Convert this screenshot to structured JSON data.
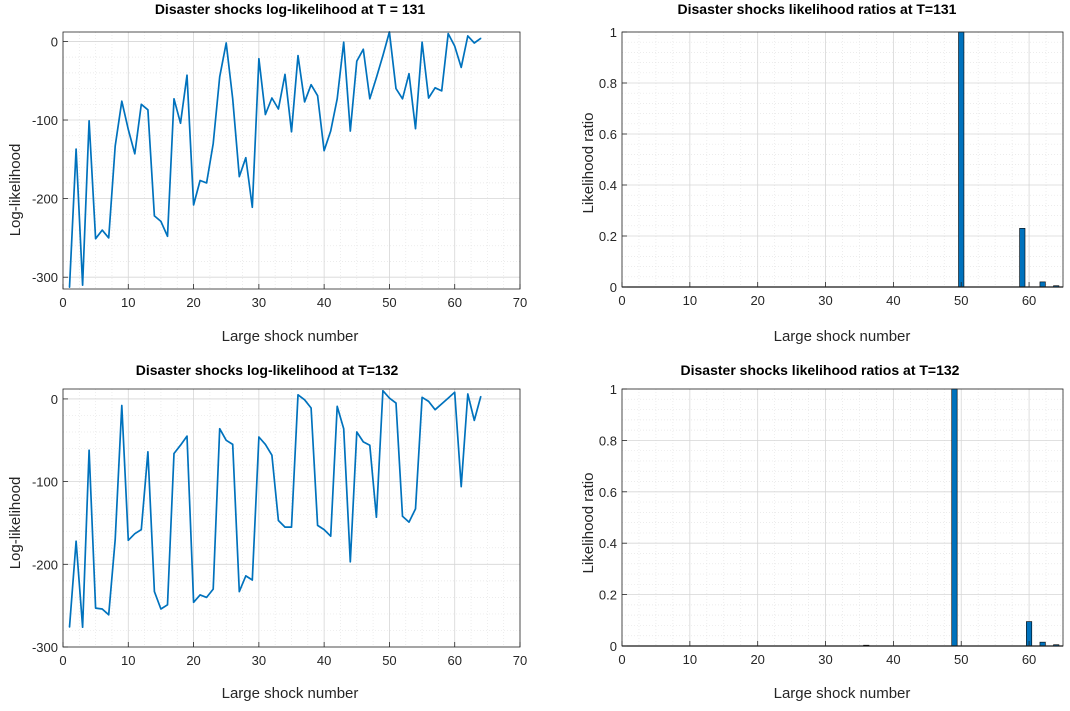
{
  "chart_data": [
    {
      "type": "line",
      "title": "Disaster shocks log-likelihood at T = 131",
      "xlabel": "Large shock number",
      "ylabel": "Log-likelihood",
      "xlim": [
        0,
        70
      ],
      "ylim": [
        -315,
        12
      ],
      "xticks": [
        0,
        10,
        20,
        30,
        40,
        50,
        60,
        70
      ],
      "yticks": [
        -300,
        -200,
        -100,
        0
      ],
      "grid": true,
      "color": "#0072BD",
      "series": [
        {
          "x": [
            1,
            2,
            3,
            4,
            5,
            6,
            7,
            8,
            9,
            10,
            11,
            12,
            13,
            14,
            15,
            16,
            17,
            18,
            19,
            20,
            21,
            22,
            23,
            24,
            25,
            26,
            27,
            28,
            29,
            30,
            31,
            32,
            33,
            34,
            35,
            36,
            37,
            38,
            39,
            40,
            41,
            42,
            43,
            44,
            45,
            46,
            47,
            48,
            49,
            50,
            51,
            52,
            53,
            54,
            55,
            56,
            57,
            58,
            59,
            60,
            61,
            62,
            63,
            64
          ],
          "y": [
            -313,
            -137,
            -310,
            -101,
            -251,
            -240,
            -250,
            -133,
            -76,
            -112,
            -143,
            -80,
            -87,
            -222,
            -229,
            -248,
            -73,
            -104,
            -43,
            -208,
            -177,
            -180,
            -130,
            -45,
            -2,
            -73,
            -172,
            -148,
            -211,
            -22,
            -93,
            -72,
            -86,
            -42,
            -115,
            -18,
            -77,
            -55,
            -69,
            -139,
            -114,
            -73,
            -1,
            -114,
            -25,
            -10,
            -73,
            -46,
            -18,
            12,
            -60,
            -73,
            -41,
            -111,
            -1,
            -72,
            -59,
            -63,
            10,
            -6,
            -33,
            7,
            -2,
            4
          ]
        }
      ]
    },
    {
      "type": "bar",
      "title": "Disaster shocks likelihood ratios at T=131",
      "xlabel": "Large shock number",
      "ylabel": "Likelihood ratio",
      "xlim": [
        0,
        65
      ],
      "ylim": [
        0,
        1
      ],
      "xticks": [
        0,
        10,
        20,
        30,
        40,
        50,
        60
      ],
      "yticks": [
        0,
        0.2,
        0.4,
        0.6,
        0.8,
        1
      ],
      "ytick_labels": [
        "0",
        "0.2",
        "0.4",
        "0.6",
        "0.8",
        "1"
      ],
      "grid": true,
      "color": "#0072BD",
      "series": [
        {
          "x": [
            50,
            59,
            62,
            64
          ],
          "y": [
            1,
            0.23,
            0.02,
            0.005
          ]
        }
      ]
    },
    {
      "type": "line",
      "title": "Disaster shocks log-likelihood at T=132",
      "xlabel": "Large shock number",
      "ylabel": "Log-likelihood",
      "xlim": [
        0,
        70
      ],
      "ylim": [
        -300,
        12
      ],
      "xticks": [
        0,
        10,
        20,
        30,
        40,
        50,
        60,
        70
      ],
      "yticks": [
        -300,
        -200,
        -100,
        0
      ],
      "grid": true,
      "color": "#0072BD",
      "series": [
        {
          "x": [
            1,
            2,
            3,
            4,
            5,
            6,
            7,
            8,
            9,
            10,
            11,
            12,
            13,
            14,
            15,
            16,
            17,
            18,
            19,
            20,
            21,
            22,
            23,
            24,
            25,
            26,
            27,
            28,
            29,
            30,
            31,
            32,
            33,
            34,
            35,
            36,
            37,
            38,
            39,
            40,
            41,
            42,
            43,
            44,
            45,
            46,
            47,
            48,
            49,
            50,
            51,
            52,
            53,
            54,
            55,
            56,
            57,
            58,
            59,
            60,
            61,
            62,
            63,
            64
          ],
          "y": [
            -276,
            -172,
            -276,
            -62,
            -253,
            -254,
            -261,
            -170,
            -8,
            -171,
            -163,
            -158,
            -64,
            -233,
            -254,
            -249,
            -66,
            -56,
            -45,
            -246,
            -237,
            -240,
            -230,
            -36,
            -50,
            -55,
            -233,
            -214,
            -219,
            -46,
            -55,
            -68,
            -147,
            -155,
            -155,
            5,
            -1,
            -11,
            -153,
            -158,
            -166,
            -9,
            -36,
            -197,
            -40,
            -52,
            -56,
            -143,
            10,
            1,
            -5,
            -142,
            -149,
            -133,
            2,
            -3,
            -13,
            -6,
            1,
            8,
            -106,
            6,
            -26,
            3
          ]
        }
      ]
    },
    {
      "type": "bar",
      "title": "Disaster shocks likelihood ratios at T=132",
      "xlabel": "Large shock number",
      "ylabel": "Likelihood ratio",
      "xlim": [
        0,
        65
      ],
      "ylim": [
        0,
        1
      ],
      "xticks": [
        0,
        10,
        20,
        30,
        40,
        50,
        60
      ],
      "yticks": [
        0,
        0.2,
        0.4,
        0.6,
        0.8,
        1
      ],
      "ytick_labels": [
        "0",
        "0.2",
        "0.4",
        "0.6",
        "0.8",
        "1"
      ],
      "grid": true,
      "color": "#0072BD",
      "series": [
        {
          "x": [
            36,
            49,
            60,
            62,
            64
          ],
          "y": [
            0.003,
            1,
            0.095,
            0.015,
            0.005
          ]
        }
      ]
    }
  ]
}
